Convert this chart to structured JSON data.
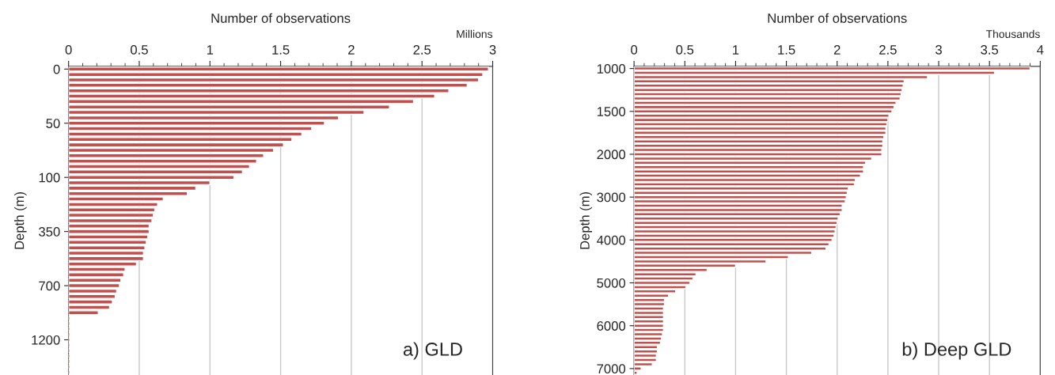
{
  "chart_data": [
    {
      "type": "bar",
      "orientation": "horizontal",
      "xlabel": "Number of observations",
      "ylabel": "Depth (m)",
      "color": "#c0504d",
      "grid": "x",
      "xlim": [
        0,
        3
      ],
      "xticks": [
        0,
        0.5,
        1,
        1.5,
        2,
        2.5,
        3
      ],
      "annotations": [
        "Millions",
        "a) GLD"
      ],
      "categories": [
        "0",
        null,
        null,
        null,
        null,
        null,
        null,
        null,
        null,
        null,
        "50",
        null,
        null,
        null,
        null,
        null,
        null,
        null,
        null,
        null,
        "100",
        null,
        null,
        null,
        null,
        null,
        null,
        null,
        null,
        null,
        "350",
        null,
        null,
        null,
        null,
        null,
        null,
        null,
        null,
        null,
        "700",
        null,
        null,
        null,
        null,
        null,
        null,
        null,
        null,
        null,
        "1200",
        null,
        null,
        null,
        null,
        null,
        null
      ],
      "values": [
        2.97,
        2.93,
        2.9,
        2.82,
        2.69,
        2.59,
        2.44,
        2.27,
        2.09,
        1.91,
        1.81,
        1.72,
        1.65,
        1.58,
        1.52,
        1.45,
        1.38,
        1.33,
        1.28,
        1.23,
        1.17,
        1.0,
        0.9,
        0.84,
        0.67,
        0.63,
        0.61,
        0.6,
        0.59,
        0.57,
        0.57,
        0.56,
        0.55,
        0.54,
        0.53,
        0.53,
        0.48,
        0.4,
        0.39,
        0.37,
        0.36,
        0.34,
        0.33,
        0.31,
        0.29,
        0.21,
        0.01,
        0.01,
        0.01,
        0.01,
        0.01,
        0.01,
        0.01,
        0.01,
        0.01,
        0.01,
        0.01
      ]
    },
    {
      "type": "bar",
      "orientation": "horizontal",
      "xlabel": "Number of observations",
      "ylabel": "Depth (m)",
      "color": "#c0504d",
      "grid": "x",
      "xlim": [
        0,
        4
      ],
      "xticks": [
        0,
        0.5,
        1,
        1.5,
        2,
        2.5,
        3,
        3.5,
        4
      ],
      "annotations": [
        "Thousands",
        "b) Deep GLD"
      ],
      "categories": [
        "1000",
        null,
        null,
        null,
        null,
        null,
        null,
        null,
        null,
        null,
        "1500",
        null,
        null,
        null,
        null,
        null,
        null,
        null,
        null,
        null,
        "2000",
        null,
        null,
        null,
        null,
        null,
        null,
        null,
        null,
        null,
        "3000",
        null,
        null,
        null,
        null,
        null,
        null,
        null,
        null,
        null,
        "4000",
        null,
        null,
        null,
        null,
        null,
        null,
        null,
        null,
        null,
        "5000",
        null,
        null,
        null,
        null,
        null,
        null,
        null,
        null,
        null,
        "6000",
        null,
        null,
        null,
        null,
        null,
        null,
        null,
        null,
        null,
        "7000",
        null
      ],
      "values": [
        3.9,
        3.55,
        2.89,
        2.66,
        2.65,
        2.64,
        2.63,
        2.62,
        2.58,
        2.56,
        2.54,
        2.51,
        2.5,
        2.49,
        2.48,
        2.48,
        2.46,
        2.45,
        2.45,
        2.44,
        2.44,
        2.34,
        2.28,
        2.26,
        2.26,
        2.23,
        2.18,
        2.17,
        2.11,
        2.1,
        2.09,
        2.08,
        2.05,
        2.05,
        2.03,
        2.01,
        2.0,
        1.99,
        1.98,
        1.97,
        1.95,
        1.92,
        1.89,
        1.75,
        1.52,
        1.3,
        1.0,
        0.72,
        0.61,
        0.58,
        0.55,
        0.51,
        0.41,
        0.34,
        0.3,
        0.3,
        0.29,
        0.29,
        0.29,
        0.29,
        0.29,
        0.29,
        0.28,
        0.27,
        0.26,
        0.23,
        0.23,
        0.22,
        0.22,
        0.18,
        0.07,
        0.03
      ]
    }
  ]
}
